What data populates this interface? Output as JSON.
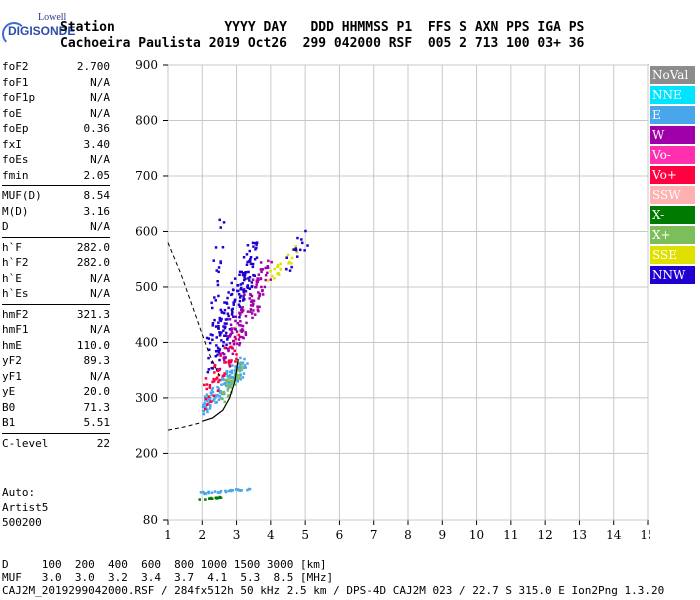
{
  "logo": {
    "line1": "Lowell",
    "line2": "DIGISONDE"
  },
  "header": {
    "row1": "Station              YYYY DAY   DDD HHMMSS P1  FFS S AXN PPS IGA PS",
    "row2": "Cachoeira Paulista 2019 Oct26  299 042000 RSF  005 2 713 100 03+ 36"
  },
  "params": [
    {
      "key": "foF2",
      "value": "2.700"
    },
    {
      "key": "foF1",
      "value": "N/A"
    },
    {
      "key": "foF1p",
      "value": "N/A"
    },
    {
      "key": "foE",
      "value": "N/A"
    },
    {
      "key": "foEp",
      "value": "0.36"
    },
    {
      "key": "fxI",
      "value": "3.40"
    },
    {
      "key": "foEs",
      "value": "N/A"
    },
    {
      "key": "fmin",
      "value": "2.05"
    },
    {
      "key": "MUF(D)",
      "value": "8.54"
    },
    {
      "key": "M(D)",
      "value": "3.16"
    },
    {
      "key": "D",
      "value": "N/A"
    },
    {
      "key": "h`F",
      "value": "282.0"
    },
    {
      "key": "h`F2",
      "value": "282.0"
    },
    {
      "key": "h`E",
      "value": "N/A"
    },
    {
      "key": "h`Es",
      "value": "N/A"
    },
    {
      "key": "hmF2",
      "value": "321.3"
    },
    {
      "key": "hmF1",
      "value": "N/A"
    },
    {
      "key": "hmE",
      "value": "110.0"
    },
    {
      "key": "yF2",
      "value": "89.3"
    },
    {
      "key": "yF1",
      "value": "N/A"
    },
    {
      "key": "yE",
      "value": "20.0"
    },
    {
      "key": "B0",
      "value": "71.3"
    },
    {
      "key": "B1",
      "value": "5.51"
    },
    {
      "key": "C-level",
      "value": "22"
    }
  ],
  "auto": {
    "line1": "Auto:",
    "line2": "Artist5",
    "line3": "500200"
  },
  "legend": [
    {
      "label": "NoVal",
      "color": "#8c8c8c"
    },
    {
      "label": "NNE",
      "color": "#00e5ff"
    },
    {
      "label": "E",
      "color": "#49a6ea"
    },
    {
      "label": "W",
      "color": "#a000a8"
    },
    {
      "label": "Vo-",
      "color": "#ff2fb0"
    },
    {
      "label": "Vo+",
      "color": "#ff0040"
    },
    {
      "label": "SSW",
      "color": "#ffb0b0"
    },
    {
      "label": "X-",
      "color": "#007a00"
    },
    {
      "label": "X+",
      "color": "#7cbf5a"
    },
    {
      "label": "SSE",
      "color": "#e0e000"
    },
    {
      "label": "NNW",
      "color": "#2000d0"
    }
  ],
  "footer": {
    "row1": "D     100  200  400  600  800 1000 1500 3000 [km]",
    "row2": "MUF   3.0  3.0  3.2  3.4  3.7  4.1  5.3  8.5 [MHz]",
    "row3": "CAJ2M_2019299042000.RSF / 284fx512h 50 kHz 2.5 km / DPS-4D CAJ2M 023 / 22.7 S 315.0 E Ion2Png 1.3.20"
  },
  "chart_data": {
    "type": "scatter",
    "xlim": [
      1,
      15
    ],
    "ylim": [
      80,
      900
    ],
    "xticks": [
      1,
      2,
      3,
      4,
      5,
      6,
      7,
      8,
      9,
      10,
      11,
      12,
      13,
      14,
      15
    ],
    "yticks": [
      80,
      200,
      300,
      400,
      500,
      600,
      700,
      800,
      900
    ],
    "grid": true,
    "profile_curve": [
      [
        2.0,
        258
      ],
      [
        2.3,
        264
      ],
      [
        2.6,
        278
      ],
      [
        2.8,
        300
      ],
      [
        2.95,
        330
      ],
      [
        3.05,
        370
      ]
    ],
    "dashed_trace": [
      [
        1.0,
        580
      ],
      [
        1.4,
        520
      ],
      [
        1.8,
        450
      ],
      [
        2.2,
        380
      ],
      [
        2.5,
        340
      ]
    ],
    "dashed_base": [
      [
        1.0,
        242
      ],
      [
        1.5,
        248
      ],
      [
        2.0,
        256
      ]
    ],
    "clusters": [
      {
        "series": "NNW",
        "color": "#2000d0",
        "x": [
          2.2,
          3.5
        ],
        "y": [
          330,
          600
        ],
        "n": 160
      },
      {
        "series": "W",
        "color": "#a000a8",
        "x": [
          2.6,
          3.9
        ],
        "y": [
          350,
          560
        ],
        "n": 120
      },
      {
        "series": "E",
        "color": "#49a6ea",
        "x": [
          2.0,
          3.2
        ],
        "y": [
          270,
          380
        ],
        "n": 120
      },
      {
        "series": "Vo+",
        "color": "#ff0040",
        "x": [
          2.0,
          3.0
        ],
        "y": [
          280,
          420
        ],
        "n": 50
      },
      {
        "series": "X+",
        "color": "#7cbf5a",
        "x": [
          2.5,
          3.1
        ],
        "y": [
          290,
          370
        ],
        "n": 40
      },
      {
        "series": "SSE",
        "color": "#e0e000",
        "x": [
          4.0,
          4.8
        ],
        "y": [
          510,
          580
        ],
        "n": 25
      },
      {
        "series": "NNW",
        "color": "#2000d0",
        "x": [
          4.4,
          5.0
        ],
        "y": [
          520,
          610
        ],
        "n": 15
      },
      {
        "series": "E",
        "color": "#49a6ea",
        "x": [
          1.9,
          3.3
        ],
        "y": [
          128,
          140
        ],
        "n": 30
      },
      {
        "series": "X-",
        "color": "#007a00",
        "x": [
          1.9,
          2.5
        ],
        "y": [
          118,
          124
        ],
        "n": 15
      },
      {
        "series": "NNW",
        "color": "#2000d0",
        "x": [
          2.3,
          2.6
        ],
        "y": [
          430,
          650
        ],
        "n": 20
      }
    ]
  }
}
